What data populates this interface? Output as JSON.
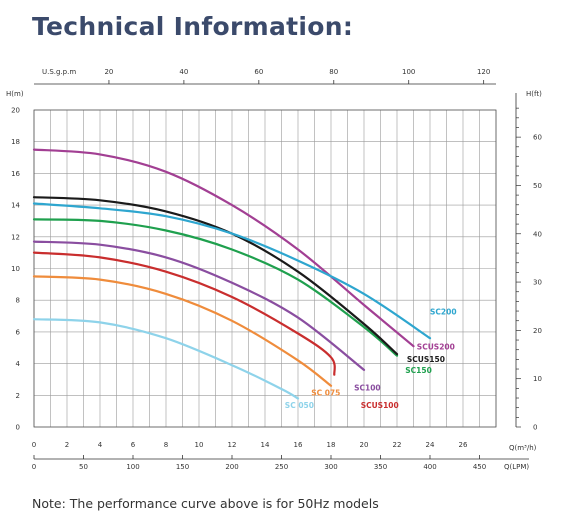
{
  "page": {
    "title": "Technical Information:",
    "note": "Note: The performance curve above is for 50Hz models"
  },
  "chart_data": {
    "type": "line",
    "x_axis": {
      "label": "Q(m³/h)",
      "range": [
        0,
        28
      ],
      "ticks": [
        0,
        2,
        4,
        6,
        8,
        10,
        12,
        14,
        16,
        18,
        20,
        22,
        24,
        26
      ]
    },
    "y_axis": {
      "label": "H(m)",
      "range": [
        0,
        20
      ],
      "ticks": [
        0,
        2,
        4,
        6,
        8,
        10,
        12,
        14,
        16,
        18,
        20
      ]
    },
    "top_axis": {
      "label": "U.S.g.p.m",
      "ticks": [
        20,
        40,
        60,
        80,
        100,
        120
      ]
    },
    "right_axis": {
      "label": "H(ft)",
      "ticks": [
        0,
        10,
        20,
        30,
        40,
        50,
        60
      ]
    },
    "bottom_axis2": {
      "label": "Q(LPM)",
      "ticks": [
        0,
        50,
        100,
        150,
        200,
        250,
        300,
        350,
        400,
        450
      ]
    },
    "grid": true,
    "series": [
      {
        "name": "SC050",
        "color": "#8ed3ea",
        "points": [
          [
            0,
            6.8
          ],
          [
            4,
            6.6
          ],
          [
            8,
            5.6
          ],
          [
            12,
            3.9
          ],
          [
            15,
            2.4
          ],
          [
            16,
            1.8
          ]
        ]
      },
      {
        "name": "SC075",
        "color": "#ef8c3c",
        "points": [
          [
            0,
            9.5
          ],
          [
            4,
            9.3
          ],
          [
            8,
            8.4
          ],
          [
            12,
            6.7
          ],
          [
            16,
            4.2
          ],
          [
            18,
            2.6
          ]
        ]
      },
      {
        "name": "SC100",
        "color": "#8a4ea0",
        "points": [
          [
            0,
            11.7
          ],
          [
            4,
            11.5
          ],
          [
            8,
            10.7
          ],
          [
            12,
            9.1
          ],
          [
            16,
            6.9
          ],
          [
            20,
            3.6
          ]
        ]
      },
      {
        "name": "SCUS100",
        "color": "#c92e2e",
        "points": [
          [
            0,
            11.0
          ],
          [
            4,
            10.7
          ],
          [
            8,
            9.8
          ],
          [
            12,
            8.2
          ],
          [
            16,
            5.9
          ],
          [
            18,
            4.4
          ],
          [
            18.2,
            3.3
          ]
        ]
      },
      {
        "name": "SC150",
        "color": "#1fa04e",
        "points": [
          [
            0,
            13.1
          ],
          [
            4,
            13.0
          ],
          [
            8,
            12.4
          ],
          [
            12,
            11.2
          ],
          [
            16,
            9.3
          ],
          [
            20,
            6.3
          ],
          [
            22,
            4.5
          ]
        ]
      },
      {
        "name": "SCUS150",
        "color": "#1a1a1a",
        "points": [
          [
            0,
            14.5
          ],
          [
            4,
            14.3
          ],
          [
            8,
            13.6
          ],
          [
            12,
            12.2
          ],
          [
            16,
            9.8
          ],
          [
            20,
            6.5
          ],
          [
            22,
            4.6
          ]
        ]
      },
      {
        "name": "SCUS200",
        "color": "#a23f93",
        "points": [
          [
            0,
            17.5
          ],
          [
            4,
            17.2
          ],
          [
            8,
            16.1
          ],
          [
            12,
            14.0
          ],
          [
            16,
            11.2
          ],
          [
            20,
            7.7
          ],
          [
            23,
            5.1
          ]
        ]
      },
      {
        "name": "SC200",
        "color": "#2ea6cf",
        "points": [
          [
            0,
            14.1
          ],
          [
            4,
            13.8
          ],
          [
            8,
            13.3
          ],
          [
            12,
            12.2
          ],
          [
            16,
            10.5
          ],
          [
            20,
            8.4
          ],
          [
            24,
            5.6
          ]
        ]
      }
    ],
    "labels": [
      {
        "text": "SC200",
        "color": "#2ea6cf",
        "x": 24.0,
        "y": 7.1
      },
      {
        "text": "SCUS200",
        "color": "#a23f93",
        "x": 23.2,
        "y": 4.9
      },
      {
        "text": "SCUS150",
        "color": "#1a1a1a",
        "x": 22.6,
        "y": 4.1
      },
      {
        "text": "SC150",
        "color": "#1fa04e",
        "x": 22.5,
        "y": 3.4
      },
      {
        "text": "SC100",
        "color": "#8a4ea0",
        "x": 19.4,
        "y": 2.3
      },
      {
        "text": "SC 075",
        "color": "#ef8c3c",
        "x": 16.8,
        "y": 2.0
      },
      {
        "text": "SCUS100",
        "color": "#c92e2e",
        "x": 19.8,
        "y": 1.2
      },
      {
        "text": "SC 050",
        "color": "#8ed3ea",
        "x": 15.2,
        "y": 1.2
      }
    ]
  }
}
